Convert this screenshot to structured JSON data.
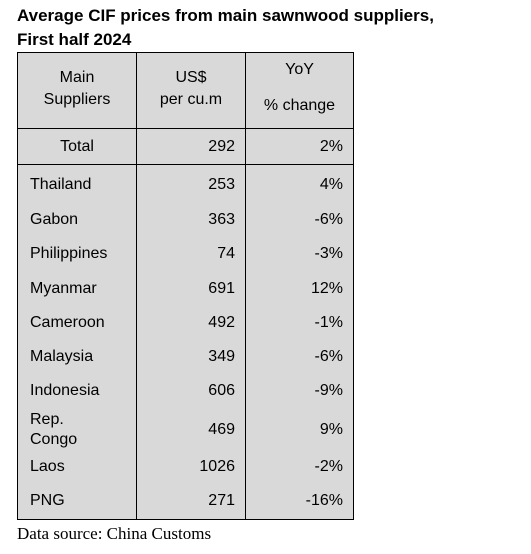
{
  "title_line1": "Average CIF prices from main sawnwood suppliers,",
  "title_line2": "First half 2024",
  "headers": {
    "col1_line1": "Main",
    "col1_line2": "Suppliers",
    "col2_line1": "US$",
    "col2_line2": "per cu.m",
    "col3_line1": "YoY",
    "col3_line2": "% change"
  },
  "total": {
    "supplier": "Total",
    "price": "292",
    "change": "2%"
  },
  "rows": [
    {
      "supplier": "Thailand",
      "price": "253",
      "change": "4%"
    },
    {
      "supplier": "Gabon",
      "price": "363",
      "change": "-6%"
    },
    {
      "supplier": "Philippines",
      "price": "74",
      "change": "-3%"
    },
    {
      "supplier": "Myanmar",
      "price": "691",
      "change": "12%"
    },
    {
      "supplier": "Cameroon",
      "price": "492",
      "change": "-1%"
    },
    {
      "supplier": "Malaysia",
      "price": "349",
      "change": "-6%"
    },
    {
      "supplier": "Indonesia",
      "price": "606",
      "change": "-9%"
    },
    {
      "supplier_line1": "Rep.",
      "supplier_line2": "Congo",
      "price": "469",
      "change": "9%"
    },
    {
      "supplier": "Laos",
      "price": "1026",
      "change": "-2%"
    },
    {
      "supplier": "PNG",
      "price": "271",
      "change": "-16%"
    }
  ],
  "source": "Data source: China Customs"
}
